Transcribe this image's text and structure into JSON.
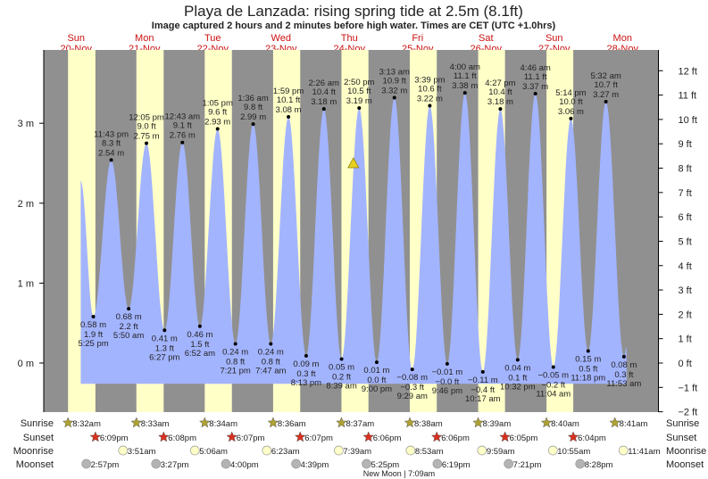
{
  "chart_data": {
    "type": "area",
    "title": "Playa de Lanzada: rising  spring tide at 2.5m (8.1ft)",
    "subtitle": "Image captured 2 hours and 2 minutes before high water. Times are CET (UTC +1.0hrs)",
    "days": [
      {
        "dow": "Sun",
        "date": "20-Nov"
      },
      {
        "dow": "Mon",
        "date": "21-Nov"
      },
      {
        "dow": "Tue",
        "date": "22-Nov"
      },
      {
        "dow": "Wed",
        "date": "23-Nov"
      },
      {
        "dow": "Thu",
        "date": "24-Nov"
      },
      {
        "dow": "Fri",
        "date": "25-Nov"
      },
      {
        "dow": "Sat",
        "date": "26-Nov"
      },
      {
        "dow": "Sun",
        "date": "27-Nov"
      },
      {
        "dow": "Mon",
        "date": "28-Nov"
      }
    ],
    "y_left": {
      "unit": "m",
      "ticks": [
        "0 m",
        "1 m",
        "2 m",
        "3 m"
      ],
      "values": [
        0,
        1,
        2,
        3
      ]
    },
    "y_right": {
      "unit": "ft",
      "ticks": [
        "−2 ft",
        "−1 ft",
        "0 ft",
        "1 ft",
        "2 ft",
        "3 ft",
        "4 ft",
        "5 ft",
        "6 ft",
        "7 ft",
        "8 ft",
        "9 ft",
        "10 ft",
        "11 ft",
        "12 ft"
      ],
      "values": [
        -2,
        -1,
        0,
        1,
        2,
        3,
        4,
        5,
        6,
        7,
        8,
        9,
        10,
        11,
        12
      ]
    },
    "current": {
      "height_m": 2.5,
      "height_ft": 8.1,
      "state": "rising",
      "time": "12:48 pm",
      "day": 4
    },
    "extremes": [
      {
        "day": 0,
        "type": "low",
        "time": "5:25 pm",
        "m": "0.58 m",
        "ft": "1.9 ft",
        "h": 0.58
      },
      {
        "day": 0,
        "type": "high",
        "time": "11:43 pm",
        "m": "2.54 m",
        "ft": "8.3 ft",
        "h": 2.54
      },
      {
        "day": 1,
        "type": "low",
        "time": "5:50 am",
        "m": "0.68 m",
        "ft": "2.2 ft",
        "h": 0.68
      },
      {
        "day": 1,
        "type": "high",
        "time": "12:05 pm",
        "m": "2.75 m",
        "ft": "9.0 ft",
        "h": 2.75
      },
      {
        "day": 1,
        "type": "low",
        "time": "6:27 pm",
        "m": "0.41 m",
        "ft": "1.3 ft",
        "h": 0.41
      },
      {
        "day": 2,
        "type": "high",
        "time": "12:43 am",
        "m": "2.76 m",
        "ft": "9.1 ft",
        "h": 2.76
      },
      {
        "day": 2,
        "type": "low",
        "time": "6:52 am",
        "m": "0.46 m",
        "ft": "1.5 ft",
        "h": 0.46
      },
      {
        "day": 2,
        "type": "high",
        "time": "1:05 pm",
        "m": "2.93 m",
        "ft": "9.6 ft",
        "h": 2.93
      },
      {
        "day": 2,
        "type": "low",
        "time": "7:21 pm",
        "m": "0.24 m",
        "ft": "0.8 ft",
        "h": 0.24
      },
      {
        "day": 3,
        "type": "high",
        "time": "1:36 am",
        "m": "2.99 m",
        "ft": "9.8 ft",
        "h": 2.99
      },
      {
        "day": 3,
        "type": "low",
        "time": "7:47 am",
        "m": "0.24 m",
        "ft": "0.8 ft",
        "h": 0.24
      },
      {
        "day": 3,
        "type": "high",
        "time": "1:59 pm",
        "m": "3.08 m",
        "ft": "10.1 ft",
        "h": 3.08
      },
      {
        "day": 3,
        "type": "low",
        "time": "8:13 pm",
        "m": "0.09 m",
        "ft": "0.3 ft",
        "h": 0.09
      },
      {
        "day": 4,
        "type": "high",
        "time": "2:26 am",
        "m": "3.18 m",
        "ft": "10.4 ft",
        "h": 3.18
      },
      {
        "day": 4,
        "type": "low",
        "time": "8:39 am",
        "m": "0.05 m",
        "ft": "0.2 ft",
        "h": 0.05
      },
      {
        "day": 4,
        "type": "high",
        "time": "2:50 pm",
        "m": "3.19 m",
        "ft": "10.5 ft",
        "h": 3.19
      },
      {
        "day": 4,
        "type": "low",
        "time": "9:00 pm",
        "m": "0.01 m",
        "ft": "0.0 ft",
        "h": 0.01
      },
      {
        "day": 5,
        "type": "high",
        "time": "3:13 am",
        "m": "3.32 m",
        "ft": "10.9 ft",
        "h": 3.32
      },
      {
        "day": 5,
        "type": "low",
        "time": "9:29 am",
        "m": "−0.08 m",
        "ft": "−0.3 ft",
        "h": -0.08
      },
      {
        "day": 5,
        "type": "high",
        "time": "3:39 pm",
        "m": "3.22 m",
        "ft": "10.6 ft",
        "h": 3.22
      },
      {
        "day": 5,
        "type": "low",
        "time": "9:46 pm",
        "m": "−0.01 m",
        "ft": "−0.0 ft",
        "h": -0.01
      },
      {
        "day": 6,
        "type": "high",
        "time": "4:00 am",
        "m": "3.38 m",
        "ft": "11.1 ft",
        "h": 3.38
      },
      {
        "day": 6,
        "type": "low",
        "time": "10:17 am",
        "m": "−0.11 m",
        "ft": "−0.4 ft",
        "h": -0.11
      },
      {
        "day": 6,
        "type": "high",
        "time": "4:27 pm",
        "m": "3.18 m",
        "ft": "10.4 ft",
        "h": 3.18
      },
      {
        "day": 6,
        "type": "low",
        "time": "10:32 pm",
        "m": "0.04 m",
        "ft": "0.1 ft",
        "h": 0.04
      },
      {
        "day": 7,
        "type": "high",
        "time": "4:46 am",
        "m": "3.37 m",
        "ft": "11.1 ft",
        "h": 3.37
      },
      {
        "day": 7,
        "type": "low",
        "time": "11:04 am",
        "m": "−0.05 m",
        "ft": "−0.2 ft",
        "h": -0.05
      },
      {
        "day": 7,
        "type": "high",
        "time": "5:14 pm",
        "m": "3.06 m",
        "ft": "10.0 ft",
        "h": 3.06
      },
      {
        "day": 7,
        "type": "low",
        "time": "11:18 pm",
        "m": "0.15 m",
        "ft": "0.5 ft",
        "h": 0.15
      },
      {
        "day": 8,
        "type": "high",
        "time": "5:32 am",
        "m": "3.27 m",
        "ft": "10.7 ft",
        "h": 3.27
      },
      {
        "day": 8,
        "type": "low",
        "time": "11:53 am",
        "m": "0.08 m",
        "ft": "0.3 ft",
        "h": 0.08
      }
    ],
    "rows": {
      "sunrise": {
        "label": "Sunrise",
        "times": [
          "8:32am",
          "8:33am",
          "8:34am",
          "8:36am",
          "8:37am",
          "8:38am",
          "8:39am",
          "8:40am",
          "8:41am"
        ],
        "days": [
          0,
          1,
          2,
          3,
          4,
          5,
          6,
          7,
          8
        ]
      },
      "sunset": {
        "label": "Sunset",
        "times": [
          "6:09pm",
          "6:08pm",
          "6:07pm",
          "6:07pm",
          "6:06pm",
          "6:06pm",
          "6:05pm",
          "6:04pm"
        ],
        "days": [
          0,
          1,
          2,
          3,
          4,
          5,
          6,
          7
        ]
      },
      "moonrise": {
        "label": "Moonrise",
        "times": [
          "3:51am",
          "5:06am",
          "6:23am",
          "7:39am",
          "8:53am",
          "9:59am",
          "10:55am",
          "11:41am"
        ],
        "days": [
          1,
          2,
          3,
          4,
          5,
          6,
          7,
          8
        ]
      },
      "moonset": {
        "label": "Moonset",
        "times": [
          "2:57pm",
          "3:27pm",
          "4:00pm",
          "4:39pm",
          "5:25pm",
          "6:19pm",
          "7:21pm",
          "8:28pm"
        ],
        "days": [
          0,
          1,
          2,
          3,
          4,
          5,
          6,
          7
        ]
      }
    },
    "moon_phase": "New Moon | 7:09am",
    "colors": {
      "night": "#909090",
      "day": "#ffffc8",
      "water": "#a3b4ff",
      "day_label": "#cc1111",
      "sunrise_icon": "#b0a232",
      "sunset_icon": "#d9301e",
      "moonrise_icon": "#ffffc8",
      "moonset_icon": "#b4b4b4",
      "current_marker": "#e8d020"
    }
  }
}
